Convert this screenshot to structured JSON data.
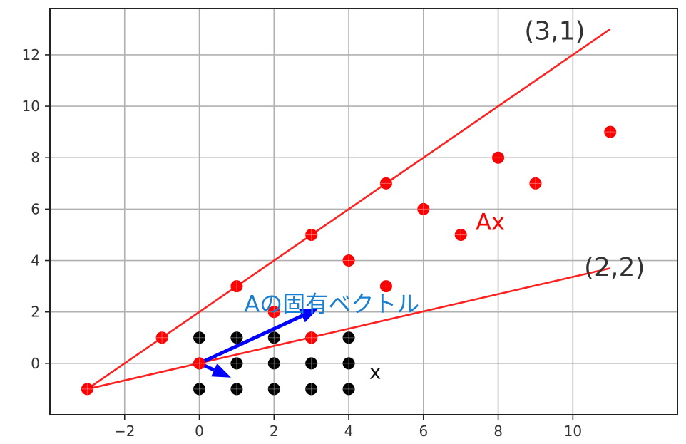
{
  "chart_data": {
    "type": "scatter",
    "xlim": [
      -4,
      12.8
    ],
    "ylim": [
      -2,
      13.8
    ],
    "xticks": [
      -2,
      0,
      2,
      4,
      6,
      8,
      10
    ],
    "yticks": [
      0,
      2,
      4,
      6,
      8,
      10,
      12
    ],
    "xtick_labels": [
      "−2",
      "0",
      "2",
      "4",
      "6",
      "8",
      "10"
    ],
    "ytick_labels": [
      "0",
      "2",
      "4",
      "6",
      "8",
      "10",
      "12"
    ],
    "grid": true,
    "series": [
      {
        "color": "#000000",
        "points": [
          [
            0,
            1
          ],
          [
            1,
            1
          ],
          [
            2,
            1
          ],
          [
            3,
            1
          ],
          [
            4,
            1
          ],
          [
            0,
            0
          ],
          [
            1,
            0
          ],
          [
            2,
            0
          ],
          [
            3,
            0
          ],
          [
            4,
            0
          ],
          [
            0,
            -1
          ],
          [
            1,
            -1
          ],
          [
            2,
            -1
          ],
          [
            3,
            -1
          ],
          [
            4,
            -1
          ]
        ]
      },
      {
        "color": "#ff0000",
        "points": [
          [
            -1,
            1
          ],
          [
            1,
            3
          ],
          [
            3,
            5
          ],
          [
            5,
            7
          ],
          [
            4,
            4
          ],
          [
            6,
            6
          ],
          [
            8,
            8
          ],
          [
            2,
            2
          ],
          [
            7,
            5
          ],
          [
            9,
            7
          ],
          [
            11,
            9
          ],
          [
            5,
            3
          ],
          [
            3,
            1
          ],
          [
            0,
            0
          ],
          [
            -3,
            -1
          ]
        ]
      }
    ],
    "lines": [
      {
        "label": "(3,1)",
        "color": "#ff2020",
        "from": [
          -3,
          -1
        ],
        "to": [
          11,
          13
        ]
      },
      {
        "label": "(2,2)",
        "color": "#ff2020",
        "from": [
          -3,
          -1
        ],
        "to": [
          11,
          3.7
        ]
      }
    ],
    "arrows": [
      {
        "color": "#0000ff",
        "from": [
          0,
          0
        ],
        "to": [
          3.2,
          2.15
        ]
      },
      {
        "color": "#0000ff",
        "from": [
          0,
          0
        ],
        "to": [
          0.85,
          -0.55
        ]
      }
    ],
    "annotations": [
      {
        "text": "(3,1)",
        "x": 8.7,
        "y": 12.6,
        "color": "#333333",
        "size": 36
      },
      {
        "text": "(2,2)",
        "x": 10.3,
        "y": 3.4,
        "color": "#333333",
        "size": 36
      },
      {
        "text": "Ax",
        "x": 7.4,
        "y": 5.2,
        "color": "#ff0000",
        "size": 32
      },
      {
        "text": "Aの固有ベクトル",
        "x": 1.2,
        "y": 2.0,
        "color": "#1a7fd0",
        "size": 32
      },
      {
        "text": "x",
        "x": 4.55,
        "y": -0.6,
        "color": "#111111",
        "size": 28
      }
    ]
  }
}
